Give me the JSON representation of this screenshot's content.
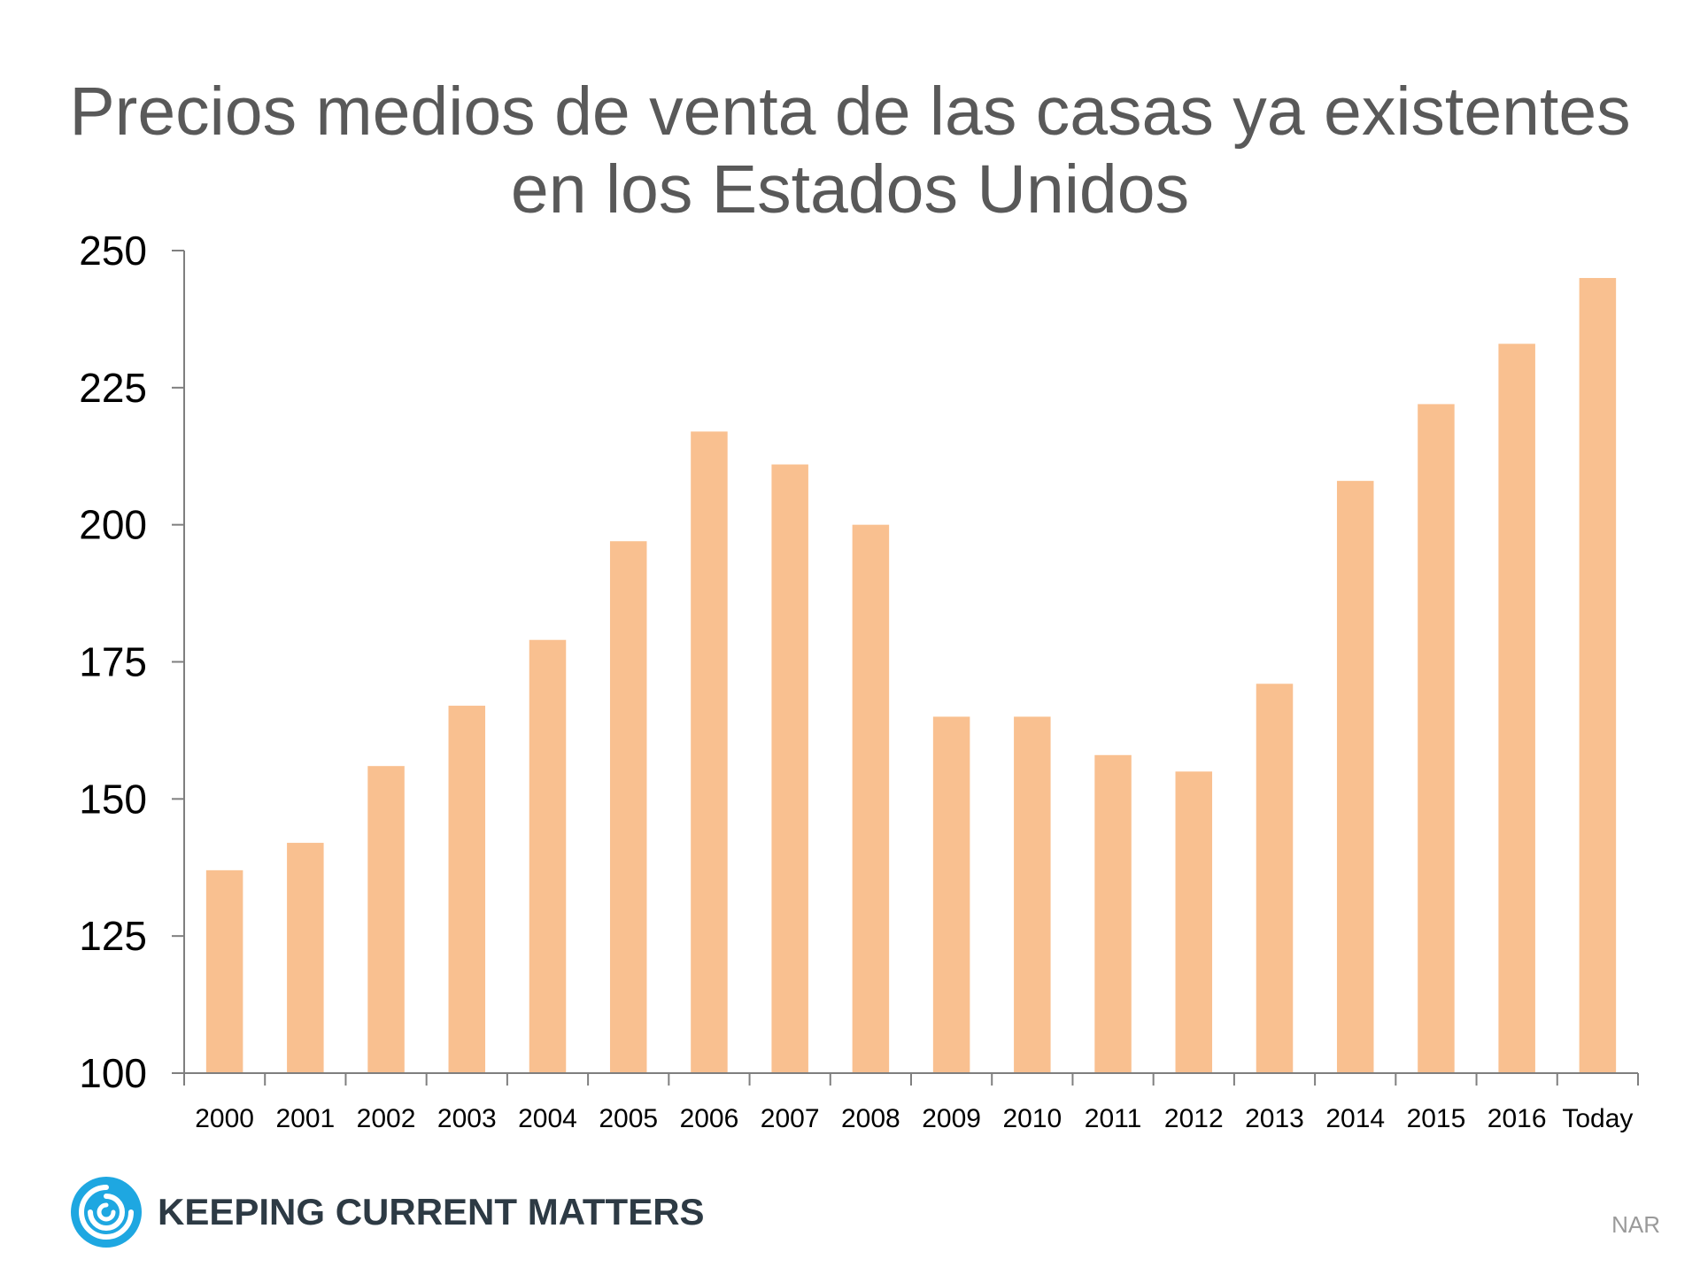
{
  "title": {
    "line1": "Precios medios de venta de las casas ya existentes",
    "line2": "en los Estados Unidos"
  },
  "chart_data": {
    "type": "bar",
    "title": "Precios medios de venta de las casas ya existentes en los Estados Unidos",
    "xlabel": "",
    "ylabel": "",
    "categories": [
      "2000",
      "2001",
      "2002",
      "2003",
      "2004",
      "2005",
      "2006",
      "2007",
      "2008",
      "2009",
      "2010",
      "2011",
      "2012",
      "2013",
      "2014",
      "2015",
      "2016",
      "Today"
    ],
    "values": [
      137,
      142,
      156,
      167,
      179,
      197,
      217,
      211,
      200,
      165,
      165,
      158,
      155,
      171,
      208,
      222,
      233,
      245
    ],
    "ylim": [
      100,
      250
    ],
    "yticks": [
      100,
      125,
      150,
      175,
      200,
      225,
      250
    ],
    "grid": false,
    "legend": "none",
    "bar_color": "#f9c090",
    "axis_color": "#7f7f7f"
  },
  "logo": {
    "text": "Keeping Current Matters",
    "icon": "swirl-logo-icon",
    "icon_color": "#1ea7e1"
  },
  "source": "NAR"
}
